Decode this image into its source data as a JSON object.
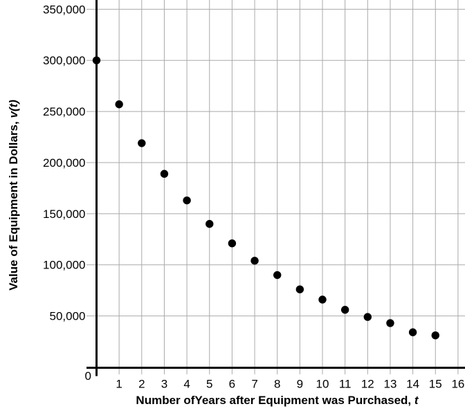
{
  "chart_data": {
    "type": "scatter",
    "x": [
      0,
      1,
      2,
      3,
      4,
      5,
      6,
      7,
      8,
      9,
      10,
      11,
      12,
      13,
      14,
      15
    ],
    "values": [
      300000,
      257000,
      219000,
      189000,
      163000,
      140000,
      121000,
      104000,
      90000,
      76000,
      66000,
      56000,
      49000,
      43000,
      34000,
      31000
    ],
    "series_name": "equipment-value-points",
    "xlabel": {
      "text": "Number ofYears after Equipment was Purchased, ",
      "variable": "t"
    },
    "ylabel": {
      "text": "Value of Equipment in Dollars, ",
      "variable": "v(t)"
    },
    "x_axis": {
      "origin_label": "0",
      "tick_labels": [
        "1",
        "2",
        "3",
        "4",
        "5",
        "6",
        "7",
        "8",
        "9",
        "10",
        "11",
        "12",
        "13",
        "14",
        "15",
        "16"
      ],
      "tick_values": [
        1,
        2,
        3,
        4,
        5,
        6,
        7,
        8,
        9,
        10,
        11,
        12,
        13,
        14,
        15,
        16
      ],
      "range": [
        0,
        16.3
      ]
    },
    "y_axis": {
      "tick_labels": [
        "50,000",
        "100,000",
        "150,000",
        "200,000",
        "250,000",
        "300,000",
        "350,000"
      ],
      "tick_values": [
        50000,
        100000,
        150000,
        200000,
        250000,
        300000,
        350000
      ],
      "range": [
        0,
        359000
      ]
    },
    "grid": "on",
    "legend": "none",
    "colors": {
      "points": "#000000",
      "axes": "#000000",
      "gridlines": "#a9a9a9",
      "text": "#000000",
      "background": "#ffffff"
    }
  }
}
